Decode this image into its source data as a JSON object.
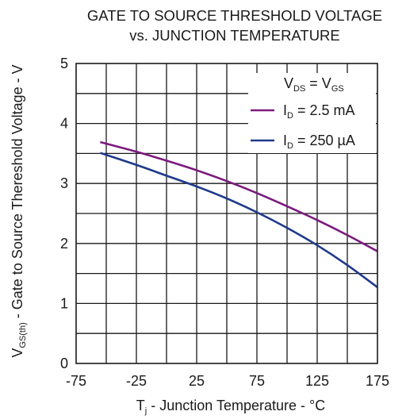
{
  "chart_data": {
    "type": "line",
    "title_line1": "GATE TO SOURCE THRESHOLD VOLTAGE",
    "title_line2": "vs. JUNCTION TEMPERATURE",
    "xlabel": {
      "main": "T",
      "sub": "j",
      "rest": " - Junction Temperature - °C"
    },
    "ylabel": {
      "main": "V",
      "sub": "GS(th)",
      "rest": " - Gate to Source Thereshold Voltage - V"
    },
    "xlim": [
      -75,
      175
    ],
    "ylim": [
      0,
      5
    ],
    "x_grid_step": 25,
    "y_grid_step": 0.5,
    "xticks": [
      "-75",
      "-25",
      "25",
      "75",
      "125",
      "175"
    ],
    "yticks": [
      "0",
      "1",
      "2",
      "3",
      "4",
      "5"
    ],
    "grid": true,
    "legend_position": "top-right",
    "legend_header": {
      "v1": "V",
      "v1sub": "DS",
      "eq": " = V",
      "v2sub": "GS"
    },
    "series": [
      {
        "name": "2.5 mA",
        "label": {
          "main": "I",
          "sub": "D",
          "rest": " = 2.5 mA"
        },
        "color": "#7b1a7e",
        "x": [
          -55,
          -25,
          0,
          25,
          50,
          75,
          100,
          125,
          150,
          175
        ],
        "y": [
          3.69,
          3.53,
          3.38,
          3.22,
          3.04,
          2.84,
          2.62,
          2.39,
          2.14,
          1.87
        ]
      },
      {
        "name": "250 µA",
        "label": {
          "main": "I",
          "sub": "D",
          "rest": " = 250 µA"
        },
        "color": "#1e3a8a",
        "x": [
          -55,
          -25,
          0,
          25,
          50,
          75,
          100,
          125,
          150,
          175
        ],
        "y": [
          3.51,
          3.31,
          3.13,
          2.95,
          2.75,
          2.52,
          2.26,
          1.97,
          1.64,
          1.27
        ]
      }
    ]
  }
}
